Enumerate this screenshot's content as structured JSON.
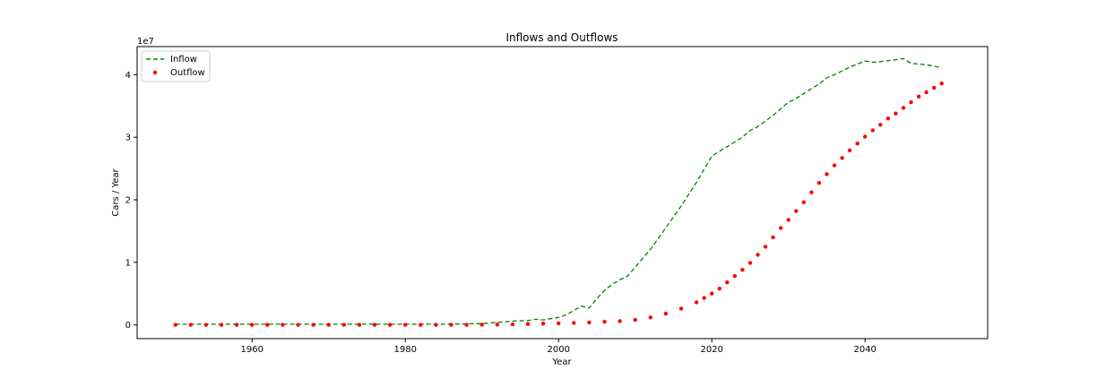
{
  "chart_data": {
    "type": "line",
    "title": "Inflows and Outflows",
    "xlabel": "Year",
    "ylabel": "Cars / Year",
    "y_offset_label": "1e7",
    "xlim": [
      1945,
      2056
    ],
    "ylim": [
      -0.22,
      4.45
    ],
    "y_unit": "1e7",
    "x_ticks": [
      1960,
      1980,
      2000,
      2020,
      2040
    ],
    "y_ticks": [
      0,
      1,
      2,
      3,
      4
    ],
    "x_tick_labels": [
      "1960",
      "1980",
      "2000",
      "2020",
      "2040"
    ],
    "y_tick_labels": [
      "0",
      "1",
      "2",
      "3",
      "4"
    ],
    "grid": false,
    "legend_position": "top-left",
    "series": [
      {
        "name": "Inflow",
        "style": "dashed-line",
        "color": "#008000",
        "x": [
          1950,
          1955,
          1960,
          1965,
          1970,
          1975,
          1980,
          1985,
          1990,
          1992,
          1994,
          1996,
          1997,
          1998,
          1999,
          2000,
          2001,
          2002,
          2003,
          2004,
          2005,
          2006,
          2007,
          2008,
          2009,
          2010,
          2012,
          2014,
          2016,
          2018,
          2020,
          2022,
          2024,
          2025,
          2026,
          2028,
          2030,
          2031,
          2032,
          2034,
          2035,
          2036,
          2038,
          2040,
          2041,
          2042,
          2044,
          2045,
          2046,
          2048,
          2050
        ],
        "values": [
          0.01,
          0.01,
          0.01,
          0.01,
          0.01,
          0.01,
          0.01,
          0.01,
          0.02,
          0.04,
          0.06,
          0.07,
          0.09,
          0.08,
          0.1,
          0.12,
          0.16,
          0.23,
          0.3,
          0.27,
          0.42,
          0.55,
          0.65,
          0.72,
          0.78,
          0.92,
          1.21,
          1.55,
          1.9,
          2.28,
          2.7,
          2.85,
          3.0,
          3.11,
          3.17,
          3.35,
          3.56,
          3.62,
          3.7,
          3.85,
          3.95,
          4.0,
          4.12,
          4.22,
          4.2,
          4.21,
          4.24,
          4.26,
          4.18,
          4.16,
          4.11
        ]
      },
      {
        "name": "Outflow",
        "style": "dotted-points",
        "color": "#ff0000",
        "x": [
          1950,
          1952,
          1954,
          1956,
          1958,
          1960,
          1962,
          1964,
          1966,
          1968,
          1970,
          1972,
          1974,
          1976,
          1978,
          1980,
          1982,
          1984,
          1986,
          1988,
          1990,
          1992,
          1994,
          1996,
          1998,
          2000,
          2002,
          2004,
          2006,
          2008,
          2010,
          2012,
          2014,
          2016,
          2018,
          2019,
          2020,
          2021,
          2022,
          2023,
          2024,
          2025,
          2026,
          2027,
          2028,
          2029,
          2030,
          2031,
          2032,
          2033,
          2034,
          2035,
          2036,
          2037,
          2038,
          2039,
          2040,
          2041,
          2042,
          2043,
          2044,
          2045,
          2046,
          2047,
          2048,
          2049,
          2050
        ],
        "values": [
          0,
          0,
          0,
          0,
          0,
          0,
          0,
          0,
          0,
          0,
          0,
          0,
          0,
          0,
          0,
          0,
          0,
          0,
          0.001,
          0.001,
          0.002,
          0.004,
          0.008,
          0.013,
          0.02,
          0.025,
          0.03,
          0.04,
          0.05,
          0.06,
          0.08,
          0.12,
          0.18,
          0.26,
          0.36,
          0.43,
          0.5,
          0.58,
          0.68,
          0.78,
          0.88,
          0.99,
          1.12,
          1.25,
          1.4,
          1.55,
          1.68,
          1.82,
          1.96,
          2.12,
          2.27,
          2.41,
          2.55,
          2.67,
          2.79,
          2.9,
          3.01,
          3.11,
          3.2,
          3.3,
          3.38,
          3.47,
          3.56,
          3.65,
          3.72,
          3.79,
          3.86
        ]
      }
    ]
  }
}
